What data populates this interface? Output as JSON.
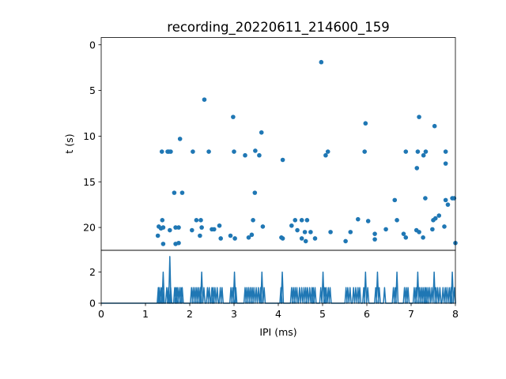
{
  "chart_data": [
    {
      "type": "scatter",
      "title": "recording_20220611_214600_159",
      "xlabel": "",
      "ylabel": "t (s)",
      "xlim": [
        0,
        8
      ],
      "ylim": [
        22.5,
        -0.8
      ],
      "y_inverted": true,
      "yticks": [
        0,
        5,
        10,
        15,
        20
      ],
      "grid": false,
      "color": "#1f77b4",
      "points": [
        [
          4.97,
          1.9
        ],
        [
          2.33,
          6.0
        ],
        [
          2.98,
          7.9
        ],
        [
          3.62,
          9.6
        ],
        [
          5.97,
          8.6
        ],
        [
          7.18,
          7.9
        ],
        [
          7.53,
          8.9
        ],
        [
          1.78,
          10.3
        ],
        [
          1.37,
          11.7
        ],
        [
          1.5,
          11.7
        ],
        [
          1.53,
          11.7
        ],
        [
          1.57,
          11.7
        ],
        [
          2.07,
          11.7
        ],
        [
          2.43,
          11.7
        ],
        [
          3.0,
          11.7
        ],
        [
          3.25,
          12.1
        ],
        [
          3.48,
          11.6
        ],
        [
          3.57,
          12.1
        ],
        [
          4.1,
          12.6
        ],
        [
          5.07,
          12.1
        ],
        [
          5.12,
          11.7
        ],
        [
          5.95,
          11.7
        ],
        [
          6.88,
          11.7
        ],
        [
          7.13,
          13.5
        ],
        [
          7.15,
          11.7
        ],
        [
          7.28,
          12.1
        ],
        [
          7.33,
          11.7
        ],
        [
          7.78,
          11.7
        ],
        [
          7.78,
          13.0
        ],
        [
          1.65,
          16.2
        ],
        [
          1.83,
          16.2
        ],
        [
          3.47,
          16.2
        ],
        [
          6.63,
          17.0
        ],
        [
          7.32,
          16.8
        ],
        [
          7.78,
          17.0
        ],
        [
          7.83,
          17.5
        ],
        [
          7.93,
          16.8
        ],
        [
          7.97,
          16.8
        ],
        [
          7.63,
          18.7
        ],
        [
          7.55,
          19.0
        ],
        [
          7.5,
          19.2
        ],
        [
          1.38,
          19.2
        ],
        [
          2.15,
          19.2
        ],
        [
          2.25,
          19.2
        ],
        [
          3.43,
          19.2
        ],
        [
          3.65,
          19.9
        ],
        [
          4.38,
          19.2
        ],
        [
          4.53,
          19.2
        ],
        [
          4.65,
          19.2
        ],
        [
          5.8,
          19.1
        ],
        [
          6.03,
          19.3
        ],
        [
          6.68,
          19.2
        ],
        [
          1.3,
          19.9
        ],
        [
          1.35,
          20.1
        ],
        [
          1.4,
          20.0
        ],
        [
          1.55,
          20.3
        ],
        [
          1.68,
          20.0
        ],
        [
          1.75,
          20.0
        ],
        [
          2.05,
          20.3
        ],
        [
          2.27,
          20.0
        ],
        [
          2.5,
          20.2
        ],
        [
          2.55,
          20.2
        ],
        [
          2.67,
          19.8
        ],
        [
          4.3,
          19.8
        ],
        [
          4.43,
          20.3
        ],
        [
          4.6,
          20.5
        ],
        [
          4.73,
          20.5
        ],
        [
          5.18,
          20.5
        ],
        [
          5.63,
          20.5
        ],
        [
          6.18,
          20.7
        ],
        [
          6.43,
          20.2
        ],
        [
          6.83,
          20.7
        ],
        [
          7.12,
          20.3
        ],
        [
          7.18,
          20.5
        ],
        [
          7.48,
          20.2
        ],
        [
          7.75,
          19.9
        ],
        [
          1.28,
          20.9
        ],
        [
          1.4,
          21.8
        ],
        [
          1.68,
          21.8
        ],
        [
          1.75,
          21.7
        ],
        [
          2.23,
          20.9
        ],
        [
          2.7,
          21.2
        ],
        [
          2.92,
          20.9
        ],
        [
          3.02,
          21.2
        ],
        [
          3.33,
          21.1
        ],
        [
          3.4,
          20.8
        ],
        [
          4.07,
          21.1
        ],
        [
          4.1,
          21.2
        ],
        [
          4.53,
          21.2
        ],
        [
          4.62,
          21.5
        ],
        [
          4.83,
          21.2
        ],
        [
          5.52,
          21.5
        ],
        [
          6.18,
          21.3
        ],
        [
          6.88,
          21.1
        ],
        [
          7.27,
          21.1
        ],
        [
          8.0,
          21.7
        ]
      ]
    },
    {
      "type": "line",
      "xlabel": "IPI (ms)",
      "ylabel": "",
      "xlim": [
        0,
        8
      ],
      "ylim": [
        0,
        3.4
      ],
      "xticks": [
        0,
        1,
        2,
        3,
        4,
        5,
        6,
        7,
        8
      ],
      "yticks": [
        0,
        2
      ],
      "grid": false,
      "color": "#1f77b4",
      "bin_width": 0.025,
      "events": [
        [
          1.29,
          1
        ],
        [
          1.31,
          1
        ],
        [
          1.35,
          1
        ],
        [
          1.38,
          1
        ],
        [
          1.4,
          2
        ],
        [
          1.48,
          1
        ],
        [
          1.52,
          1
        ],
        [
          1.55,
          3
        ],
        [
          1.57,
          1
        ],
        [
          1.66,
          1
        ],
        [
          1.69,
          1
        ],
        [
          1.72,
          1
        ],
        [
          1.76,
          1
        ],
        [
          1.8,
          1
        ],
        [
          1.83,
          1
        ],
        [
          2.04,
          1
        ],
        [
          2.08,
          1
        ],
        [
          2.12,
          1
        ],
        [
          2.16,
          1
        ],
        [
          2.2,
          1
        ],
        [
          2.24,
          1
        ],
        [
          2.27,
          2
        ],
        [
          2.32,
          1
        ],
        [
          2.4,
          1
        ],
        [
          2.44,
          1
        ],
        [
          2.5,
          1
        ],
        [
          2.53,
          1
        ],
        [
          2.57,
          1
        ],
        [
          2.62,
          1
        ],
        [
          2.69,
          1
        ],
        [
          2.73,
          1
        ],
        [
          2.93,
          1
        ],
        [
          2.97,
          1
        ],
        [
          3.01,
          2
        ],
        [
          3.04,
          1
        ],
        [
          3.25,
          1
        ],
        [
          3.29,
          1
        ],
        [
          3.33,
          1
        ],
        [
          3.37,
          1
        ],
        [
          3.41,
          1
        ],
        [
          3.45,
          1
        ],
        [
          3.5,
          1
        ],
        [
          3.55,
          1
        ],
        [
          3.6,
          1
        ],
        [
          3.63,
          2
        ],
        [
          3.68,
          1
        ],
        [
          4.06,
          1
        ],
        [
          4.09,
          2
        ],
        [
          4.3,
          1
        ],
        [
          4.34,
          1
        ],
        [
          4.38,
          1
        ],
        [
          4.42,
          1
        ],
        [
          4.48,
          1
        ],
        [
          4.53,
          1
        ],
        [
          4.58,
          1
        ],
        [
          4.62,
          1
        ],
        [
          4.66,
          1
        ],
        [
          4.71,
          1
        ],
        [
          4.76,
          1
        ],
        [
          4.79,
          1
        ],
        [
          4.83,
          1
        ],
        [
          4.96,
          1
        ],
        [
          5.01,
          2
        ],
        [
          5.05,
          1
        ],
        [
          5.08,
          1
        ],
        [
          5.13,
          1
        ],
        [
          5.17,
          1
        ],
        [
          5.53,
          1
        ],
        [
          5.57,
          1
        ],
        [
          5.62,
          1
        ],
        [
          5.7,
          1
        ],
        [
          5.75,
          1
        ],
        [
          5.8,
          1
        ],
        [
          5.84,
          1
        ],
        [
          5.93,
          1
        ],
        [
          5.97,
          2
        ],
        [
          6.02,
          1
        ],
        [
          6.2,
          1
        ],
        [
          6.24,
          2
        ],
        [
          6.28,
          1
        ],
        [
          6.4,
          1
        ],
        [
          6.6,
          1
        ],
        [
          6.64,
          1
        ],
        [
          6.68,
          2
        ],
        [
          6.85,
          1
        ],
        [
          6.89,
          1
        ],
        [
          6.93,
          1
        ],
        [
          7.07,
          1
        ],
        [
          7.11,
          1
        ],
        [
          7.15,
          2
        ],
        [
          7.19,
          1
        ],
        [
          7.23,
          1
        ],
        [
          7.27,
          1
        ],
        [
          7.31,
          1
        ],
        [
          7.34,
          1
        ],
        [
          7.38,
          1
        ],
        [
          7.42,
          1
        ],
        [
          7.47,
          1
        ],
        [
          7.52,
          2
        ],
        [
          7.56,
          1
        ],
        [
          7.6,
          1
        ],
        [
          7.65,
          1
        ],
        [
          7.72,
          1
        ],
        [
          7.77,
          1
        ],
        [
          7.81,
          1
        ],
        [
          7.86,
          1
        ],
        [
          7.9,
          1
        ],
        [
          7.93,
          2
        ],
        [
          7.98,
          1
        ]
      ]
    }
  ]
}
